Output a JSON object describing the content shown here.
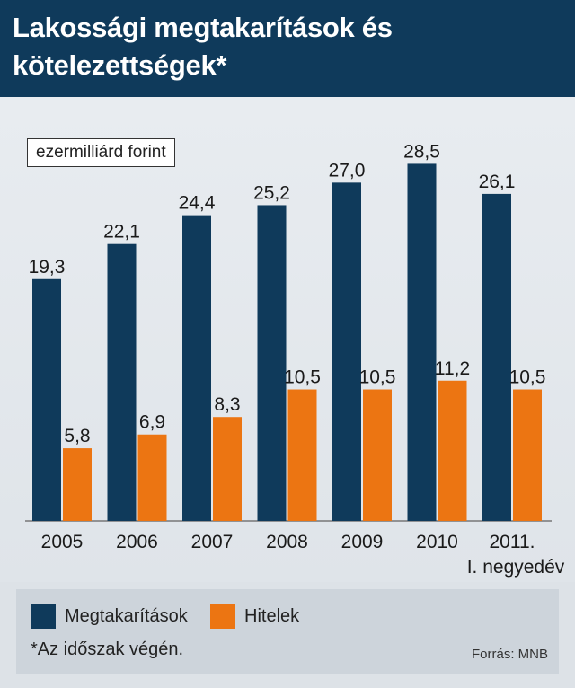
{
  "header": {
    "title": "Lakossági megtakarítások és kötelezettségek*"
  },
  "unit_label": "ezermilliárd forint",
  "chart_data": {
    "type": "bar",
    "categories": [
      "2005",
      "2006",
      "2007",
      "2008",
      "2009",
      "2010",
      "2011.|I. negyedév"
    ],
    "series": [
      {
        "name": "Megtakarítások",
        "color": "#0f3a5b",
        "values": [
          19.3,
          22.1,
          24.4,
          25.2,
          27.0,
          28.5,
          26.1
        ],
        "labels": [
          "19,3",
          "22,1",
          "24,4",
          "25,2",
          "27,0",
          "28,5",
          "26,1"
        ]
      },
      {
        "name": "Hitelek",
        "color": "#ec7512",
        "values": [
          5.8,
          6.9,
          8.3,
          10.5,
          10.5,
          11.2,
          10.5
        ],
        "labels": [
          "5,8",
          "6,9",
          "8,3",
          "10,5",
          "10,5",
          "11,2",
          "10,5"
        ]
      }
    ],
    "ylim": [
      0,
      28.5
    ],
    "grid": false,
    "legend": "bottom"
  },
  "legend": {
    "items": [
      {
        "label": "Megtakarítások",
        "color": "#0f3a5b"
      },
      {
        "label": "Hitelek",
        "color": "#ec7512"
      }
    ]
  },
  "footnote": "*Az időszak végén.",
  "source": "Forrás: MNB"
}
